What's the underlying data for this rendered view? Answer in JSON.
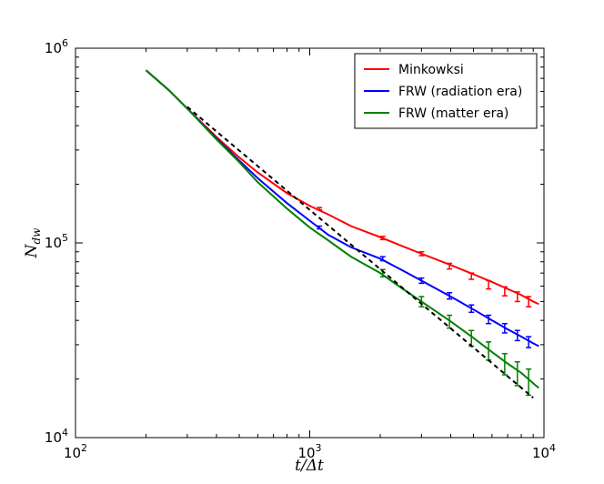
{
  "chart_data": {
    "type": "line",
    "xscale": "log",
    "yscale": "log",
    "xlim": [
      100,
      10000
    ],
    "ylim": [
      10000,
      1000000
    ],
    "x_ticks": [
      {
        "value": 100,
        "base": "10",
        "exp": "2"
      },
      {
        "value": 1000,
        "base": "10",
        "exp": "3"
      },
      {
        "value": 10000,
        "base": "10",
        "exp": "4"
      }
    ],
    "y_ticks": [
      {
        "value": 10000,
        "base": "10",
        "exp": "4"
      },
      {
        "value": 100000,
        "base": "10",
        "exp": "5"
      },
      {
        "value": 1000000,
        "base": "10",
        "exp": "6"
      }
    ],
    "xlabel": {
      "main": "t/Δt"
    },
    "ylabel": {
      "main": "N",
      "sub": "dw"
    },
    "grid": false,
    "legend_position": "top-right",
    "series": [
      {
        "name": "Minkowksi",
        "color": "#ff0000",
        "x": [
          200,
          250,
          300,
          400,
          500,
          600,
          800,
          1000,
          1200,
          1500,
          2000,
          2500,
          3000,
          4000,
          5000,
          6000,
          7000,
          8000,
          9000,
          9500
        ],
        "y": [
          770000,
          610000,
          490000,
          350000,
          275000,
          230000,
          180000,
          155000,
          140000,
          122000,
          107000,
          96000,
          88000,
          77000,
          69000,
          63000,
          58000,
          54000,
          50000,
          48500
        ],
        "errorbars": [
          {
            "x": 1100,
            "y": 150000,
            "err": 2000
          },
          {
            "x": 2050,
            "y": 106000,
            "err": 2000
          },
          {
            "x": 3000,
            "y": 88000,
            "err": 2000
          },
          {
            "x": 3950,
            "y": 76000,
            "err": 2500
          },
          {
            "x": 4900,
            "y": 67500,
            "err": 2500
          },
          {
            "x": 5800,
            "y": 61000,
            "err": 3000
          },
          {
            "x": 6800,
            "y": 56500,
            "err": 3000
          },
          {
            "x": 7700,
            "y": 53000,
            "err": 3000
          },
          {
            "x": 8600,
            "y": 50000,
            "err": 3000
          }
        ]
      },
      {
        "name": "FRW (radiation era)",
        "color": "#0000ff",
        "x": [
          200,
          250,
          300,
          400,
          500,
          600,
          800,
          1000,
          1200,
          1500,
          2000,
          2500,
          3000,
          4000,
          5000,
          6000,
          7000,
          8000,
          9000,
          9500
        ],
        "y": [
          770000,
          610000,
          490000,
          345000,
          265000,
          215000,
          160000,
          130000,
          110000,
          95000,
          83000,
          72000,
          64000,
          53000,
          45500,
          40000,
          36000,
          33000,
          30500,
          29500
        ],
        "errorbars": [
          {
            "x": 1100,
            "y": 120000,
            "err": 2000
          },
          {
            "x": 2050,
            "y": 83000,
            "err": 2000
          },
          {
            "x": 3000,
            "y": 64000,
            "err": 2000
          },
          {
            "x": 3950,
            "y": 53500,
            "err": 2000
          },
          {
            "x": 4900,
            "y": 46000,
            "err": 2000
          },
          {
            "x": 5800,
            "y": 40500,
            "err": 2000
          },
          {
            "x": 6800,
            "y": 36500,
            "err": 2000
          },
          {
            "x": 7700,
            "y": 33500,
            "err": 2000
          },
          {
            "x": 8600,
            "y": 31000,
            "err": 2000
          }
        ]
      },
      {
        "name": "FRW (matter era)",
        "color": "#008000",
        "x": [
          200,
          250,
          300,
          400,
          500,
          600,
          800,
          1000,
          1200,
          1500,
          2000,
          2500,
          3000,
          4000,
          5000,
          6000,
          7000,
          8000,
          9000,
          9500
        ],
        "y": [
          770000,
          610000,
          490000,
          340000,
          260000,
          205000,
          150000,
          120000,
          103000,
          85000,
          70000,
          58000,
          50000,
          39500,
          32500,
          27500,
          24000,
          21500,
          19000,
          18000
        ],
        "errorbars": [
          {
            "x": 2050,
            "y": 70000,
            "err": 3000
          },
          {
            "x": 3000,
            "y": 50000,
            "err": 3000
          },
          {
            "x": 3950,
            "y": 39500,
            "err": 3000
          },
          {
            "x": 4900,
            "y": 32500,
            "err": 3000
          },
          {
            "x": 5800,
            "y": 28000,
            "err": 3000
          },
          {
            "x": 6800,
            "y": 24000,
            "err": 3000
          },
          {
            "x": 7700,
            "y": 21500,
            "err": 3000
          },
          {
            "x": 8600,
            "y": 19500,
            "err": 3000
          }
        ]
      },
      {
        "name": "",
        "color": "#000000",
        "dashed": true,
        "x": [
          300,
          9000
        ],
        "y": [
          500000,
          16000
        ],
        "errorbars": []
      }
    ]
  }
}
